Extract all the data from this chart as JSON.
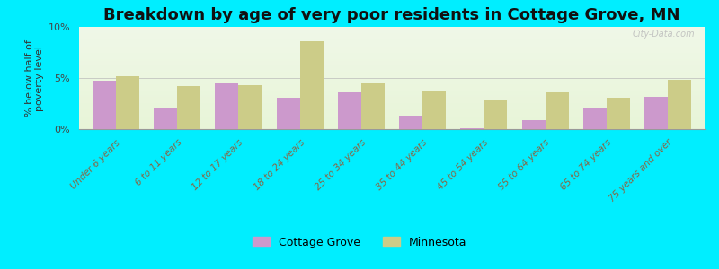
{
  "title": "Breakdown by age of very poor residents in Cottage Grove, MN",
  "ylabel": "% below half of\npoverty level",
  "categories": [
    "Under 6 years",
    "6 to 11 years",
    "12 to 17 years",
    "18 to 24 years",
    "25 to 34 years",
    "35 to 44 years",
    "45 to 54 years",
    "55 to 64 years",
    "65 to 74 years",
    "75 years and over"
  ],
  "cottage_grove": [
    4.7,
    2.1,
    4.5,
    3.1,
    3.6,
    1.3,
    0.1,
    0.9,
    2.1,
    3.2
  ],
  "minnesota": [
    5.2,
    4.2,
    4.3,
    8.6,
    4.5,
    3.7,
    2.8,
    3.6,
    3.1,
    4.8
  ],
  "cottage_grove_color": "#cc99cc",
  "minnesota_color": "#cccc88",
  "background_outer": "#00eeff",
  "ylim": [
    0,
    10
  ],
  "yticks": [
    0,
    5,
    10
  ],
  "ytick_labels": [
    "0%",
    "5%",
    "10%"
  ],
  "bar_width": 0.38,
  "title_fontsize": 13,
  "legend_labels": [
    "Cottage Grove",
    "Minnesota"
  ],
  "watermark": "City-Data.com",
  "xtick_color": "#886644",
  "ytick_color": "#444444",
  "bg_top_color": "#f0f8e8",
  "bg_bottom_color": "#e8f5d8"
}
